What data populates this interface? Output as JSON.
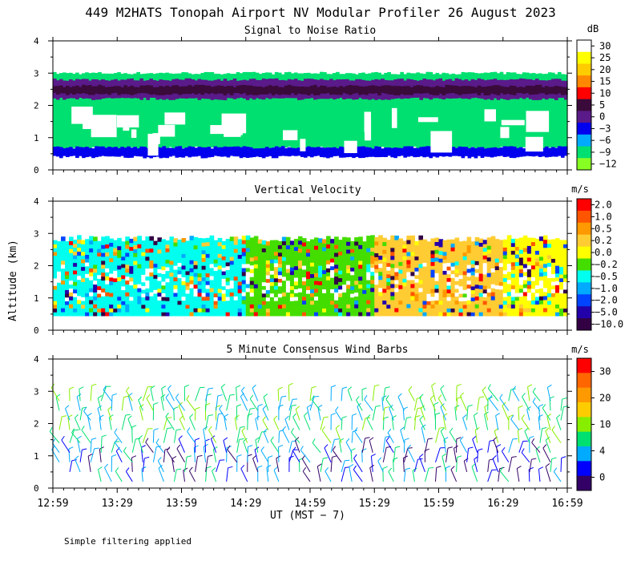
{
  "title": "449 M2HATS Tonopah Airport NV Modular Profiler 26 August 2023",
  "footnote": "Simple filtering applied",
  "chart_data": [
    {
      "type": "heatmap",
      "title": "Signal to Noise Ratio",
      "ylabel": "Altitude (km)",
      "ylim": [
        0,
        4
      ],
      "y_ticks": [
        "0",
        "1",
        "2",
        "3",
        "4"
      ],
      "unit": "dB",
      "colorbar": {
        "labels": [
          "30",
          "25",
          "20",
          "15",
          "10",
          "5",
          "0",
          "−3",
          "−6",
          "−9",
          "−12"
        ],
        "colors": [
          "#ffffff",
          "#ffff00",
          "#ffcc00",
          "#ff8800",
          "#ff0000",
          "#3a0a3a",
          "#5a1a8a",
          "#0000ee",
          "#00aaff",
          "#00e070",
          "#88ff22"
        ]
      },
      "layers": [
        {
          "ymin": 0.6,
          "ymax": 3.0,
          "value": "−9"
        },
        {
          "ymin": 2.2,
          "ymax": 2.8,
          "value": "0"
        },
        {
          "ymin": 2.35,
          "ymax": 2.6,
          "value": "5"
        },
        {
          "ymin": 0.4,
          "ymax": 0.7,
          "value": "−3"
        }
      ]
    },
    {
      "type": "heatmap",
      "title": "Vertical Velocity",
      "ylim": [
        0,
        4
      ],
      "y_ticks": [
        "0",
        "1",
        "2",
        "3",
        "4"
      ],
      "unit": "m/s",
      "colorbar": {
        "labels": [
          "2.0",
          "1.0",
          "0.5",
          "0.2",
          "0.0",
          "−0.2",
          "−0.5",
          "−1.0",
          "−2.0",
          "−5.0",
          "−10.0"
        ],
        "colors": [
          "#ff0000",
          "#ff5500",
          "#ff9900",
          "#ffcc33",
          "#ffff00",
          "#44dd00",
          "#00ffee",
          "#00aaff",
          "#0044ff",
          "#2200aa",
          "#330044"
        ]
      },
      "dominant": [
        {
          "time": "12:59",
          "value": "−0.5"
        },
        {
          "time": "14:29",
          "value": "−0.2"
        },
        {
          "time": "15:29",
          "value": "0.2"
        },
        {
          "time": "16:29",
          "value": "0.0"
        }
      ]
    },
    {
      "type": "scatter",
      "title": "5 Minute Consensus Wind Barbs",
      "ylim": [
        0,
        4
      ],
      "y_ticks": [
        "0",
        "1",
        "2",
        "3",
        "4"
      ],
      "unit": "m/s",
      "colorbar": {
        "labels": [
          "30",
          "20",
          "10",
          "4",
          "0"
        ],
        "colors": [
          "#ff0000",
          "#ff6600",
          "#ff9900",
          "#ffcc00",
          "#88ee00",
          "#00e070",
          "#00aaff",
          "#0000ff",
          "#330066"
        ]
      },
      "barb_heights_km": [
        0.2,
        0.5,
        0.8,
        1.1,
        1.4,
        1.8,
        2.1,
        2.4,
        2.7
      ],
      "barb_interval_min": 5
    }
  ],
  "x_axis": {
    "ticks": [
      "12:59",
      "13:29",
      "13:59",
      "14:29",
      "14:59",
      "15:29",
      "15:59",
      "16:29",
      "16:59"
    ],
    "label": "UT  (MST − 7)"
  },
  "ylabel": "Altitude (km)"
}
